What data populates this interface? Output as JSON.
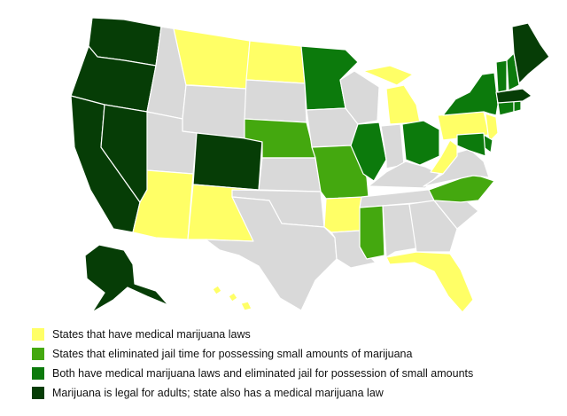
{
  "colors": {
    "medical": "#ffff66",
    "decriminalized": "#44a80f",
    "both": "#0c7a0c",
    "legal": "#063d06",
    "none": "#d9d9d9",
    "border": "#ffffff"
  },
  "legend": [
    {
      "category": "medical",
      "label": "States that have medical marijuana laws"
    },
    {
      "category": "decriminalized",
      "label": "States that eliminated jail time for possessing small amounts of marijuana"
    },
    {
      "category": "both",
      "label": "Both have medical marijuana laws and eliminated jail for possession of small amounts"
    },
    {
      "category": "legal",
      "label": "Marijuana is legal for adults; state also has a medical marijuana law"
    }
  ],
  "states": {
    "WA": "legal",
    "OR": "legal",
    "CA": "legal",
    "NV": "legal",
    "CO": "legal",
    "AK": "legal",
    "ME": "legal",
    "MA": "legal",
    "VT": "both",
    "ID": "none",
    "MT": "medical",
    "WY": "none",
    "UT": "none",
    "AZ": "medical",
    "NM": "medical",
    "ND": "medical",
    "SD": "none",
    "NE": "decriminalized",
    "KS": "none",
    "OK": "none",
    "TX": "none",
    "MN": "both",
    "IA": "none",
    "MO": "decriminalized",
    "AR": "medical",
    "LA": "none",
    "WI": "none",
    "IL": "both",
    "MI": "medical",
    "IN": "none",
    "OH": "both",
    "KY": "none",
    "TN": "none",
    "MS": "decriminalized",
    "AL": "none",
    "GA": "none",
    "FL": "medical",
    "SC": "none",
    "NC": "decriminalized",
    "VA": "none",
    "WV": "medical",
    "PA": "medical",
    "NY": "both",
    "NJ": "medical",
    "DE": "both",
    "MD": "both",
    "CT": "both",
    "RI": "both",
    "NH": "both",
    "HI": "medical"
  }
}
